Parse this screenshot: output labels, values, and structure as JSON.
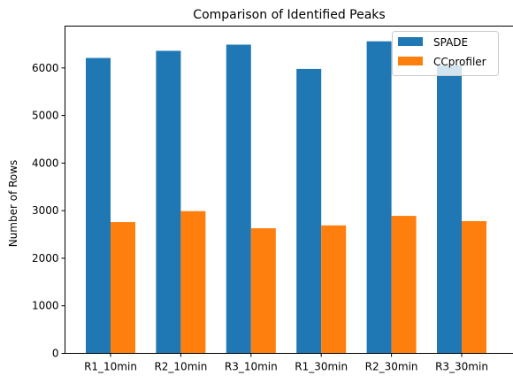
{
  "chart_data": {
    "type": "bar",
    "title": "Comparison of Identified Peaks",
    "xlabel": "",
    "ylabel": "Number of Rows",
    "categories": [
      "R1_10min",
      "R2_10min",
      "R3_10min",
      "R1_30min",
      "R2_30min",
      "R3_30min"
    ],
    "series": [
      {
        "name": "SPADE",
        "color": "#1f77b4",
        "values": [
          6210,
          6360,
          6490,
          5980,
          6560,
          6050
        ]
      },
      {
        "name": "CCprofiler",
        "color": "#ff7f0e",
        "values": [
          2760,
          2990,
          2630,
          2690,
          2890,
          2780
        ]
      }
    ],
    "ylim": [
      0,
      6880
    ],
    "yticks": [
      0,
      1000,
      2000,
      3000,
      4000,
      5000,
      6000
    ],
    "grid": false,
    "legend_position": "top-right"
  }
}
